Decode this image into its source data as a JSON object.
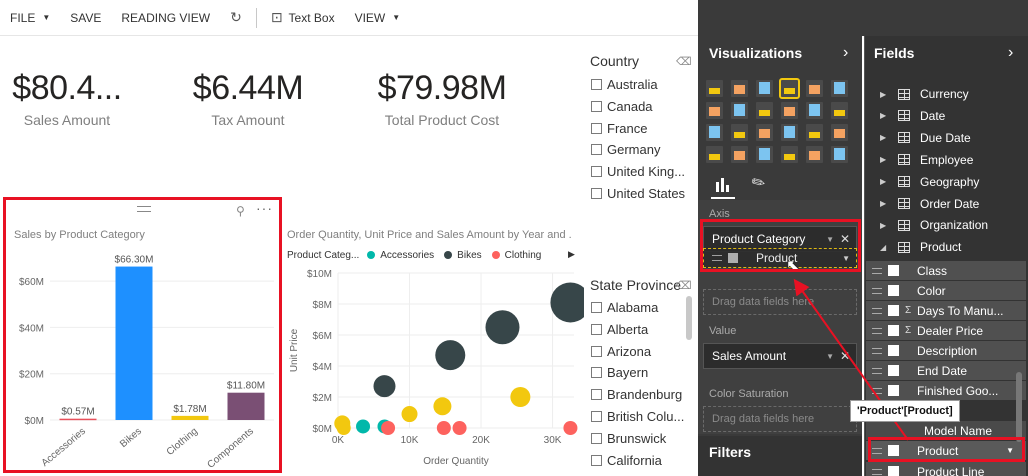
{
  "toolbar": {
    "file": "FILE",
    "save": "SAVE",
    "reading_view": "READING VIEW",
    "text_box": "Text Box",
    "view": "VIEW"
  },
  "kpis": [
    {
      "value": "$80.4...",
      "label": "Sales Amount"
    },
    {
      "value": "$6.44M",
      "label": "Tax Amount"
    },
    {
      "value": "$79.98M",
      "label": "Total Product Cost"
    }
  ],
  "country_slicer": {
    "title": "Country",
    "items": [
      "Australia",
      "Canada",
      "France",
      "Germany",
      "United King...",
      "United States"
    ]
  },
  "state_slicer": {
    "title": "State Province",
    "items": [
      "Alabama",
      "Alberta",
      "Arizona",
      "Bayern",
      "Brandenburg",
      "British Colu...",
      "Brunswick",
      "California"
    ]
  },
  "bar_chart": {
    "title": "Sales by Product Category",
    "chart_data": {
      "type": "bar",
      "title": "Sales by Product Category",
      "categories": [
        "Accessories",
        "Bikes",
        "Clothing",
        "Components"
      ],
      "values": [
        0.57,
        66.3,
        1.78,
        11.8
      ],
      "data_labels": [
        "$0.57M",
        "$66.30M",
        "$1.78M",
        "$11.80M"
      ],
      "colors": [
        "#e8505b",
        "#1e90ff",
        "#f2c80f",
        "#7a4f74"
      ],
      "yticks": [
        "$0M",
        "$20M",
        "$40M",
        "$60M"
      ],
      "ylim": [
        0,
        70
      ]
    }
  },
  "scatter_chart": {
    "title": "Order Quantity, Unit Price and Sales Amount by Year and ...",
    "legend_title": "Product Categ...",
    "legend": [
      {
        "name": "Accessories",
        "color": "#01b8aa"
      },
      {
        "name": "Bikes",
        "color": "#374649"
      },
      {
        "name": "Clothing",
        "color": "#fd625e"
      }
    ],
    "xlabel": "Order Quantity",
    "ylabel": "Unit Price",
    "xticks": [
      "0K",
      "10K",
      "20K",
      "30K"
    ],
    "yticks": [
      "$0M",
      "$2M",
      "$4M",
      "$6M",
      "$8M",
      "$10M"
    ],
    "chart_data": {
      "type": "scatter",
      "xlim": [
        0,
        33000
      ],
      "ylim": [
        0,
        10
      ],
      "points": [
        {
          "x": 600,
          "y": 0.2,
          "size": 7,
          "color": "#01b8aa"
        },
        {
          "x": 3500,
          "y": 0.1,
          "size": 7,
          "color": "#01b8aa"
        },
        {
          "x": 6500,
          "y": 0.1,
          "size": 7,
          "color": "#01b8aa"
        },
        {
          "x": 600,
          "y": 0.3,
          "size": 8,
          "color": "#f2c80f"
        },
        {
          "x": 800,
          "y": 0.0,
          "size": 7,
          "color": "#f2c80f"
        },
        {
          "x": 10000,
          "y": 0.9,
          "size": 8,
          "color": "#f2c80f"
        },
        {
          "x": 14600,
          "y": 1.4,
          "size": 9,
          "color": "#f2c80f"
        },
        {
          "x": 25500,
          "y": 2.0,
          "size": 10,
          "color": "#f2c80f"
        },
        {
          "x": 6500,
          "y": 2.7,
          "size": 11,
          "color": "#374649"
        },
        {
          "x": 15700,
          "y": 4.7,
          "size": 15,
          "color": "#374649"
        },
        {
          "x": 23000,
          "y": 6.5,
          "size": 17,
          "color": "#374649"
        },
        {
          "x": 32500,
          "y": 8.1,
          "size": 20,
          "color": "#374649"
        },
        {
          "x": 7000,
          "y": 0.0,
          "size": 7,
          "color": "#fd625e"
        },
        {
          "x": 14800,
          "y": 0.0,
          "size": 7,
          "color": "#fd625e"
        },
        {
          "x": 17000,
          "y": 0.0,
          "size": 7,
          "color": "#fd625e"
        },
        {
          "x": 32500,
          "y": 0.0,
          "size": 7,
          "color": "#fd625e"
        }
      ]
    }
  },
  "visualizations": {
    "title": "Visualizations",
    "icon_colors": [
      "#f2c80f",
      "#f4a261",
      "#7cc4f0"
    ],
    "axis_label": "Axis",
    "axis_field": "Product Category",
    "axis_dragging": "Product",
    "legend_placeholder": "Drag data fields here",
    "value_label": "Value",
    "value_field": "Sales Amount",
    "color_saturation_label": "Color Saturation",
    "color_saturation_placeholder": "Drag data fields here",
    "filters_title": "Filters"
  },
  "fields": {
    "title": "Fields",
    "tables": [
      "Currency",
      "Date",
      "Due Date",
      "Employee",
      "Geography",
      "Order Date",
      "Organization",
      "Product"
    ],
    "product_fields": [
      {
        "name": "Class",
        "sigma": false
      },
      {
        "name": "Color",
        "sigma": false
      },
      {
        "name": "Days To Manu...",
        "sigma": true
      },
      {
        "name": "Dealer Price",
        "sigma": true
      },
      {
        "name": "Description",
        "sigma": false
      },
      {
        "name": "End Date",
        "sigma": false
      },
      {
        "name": "Finished Goo...",
        "sigma": false
      },
      {
        "name": "Model Name",
        "sigma": false
      },
      {
        "name": "Product",
        "sigma": false
      },
      {
        "name": "Product Line",
        "sigma": false
      }
    ],
    "tooltip": "'Product'[Product]"
  }
}
